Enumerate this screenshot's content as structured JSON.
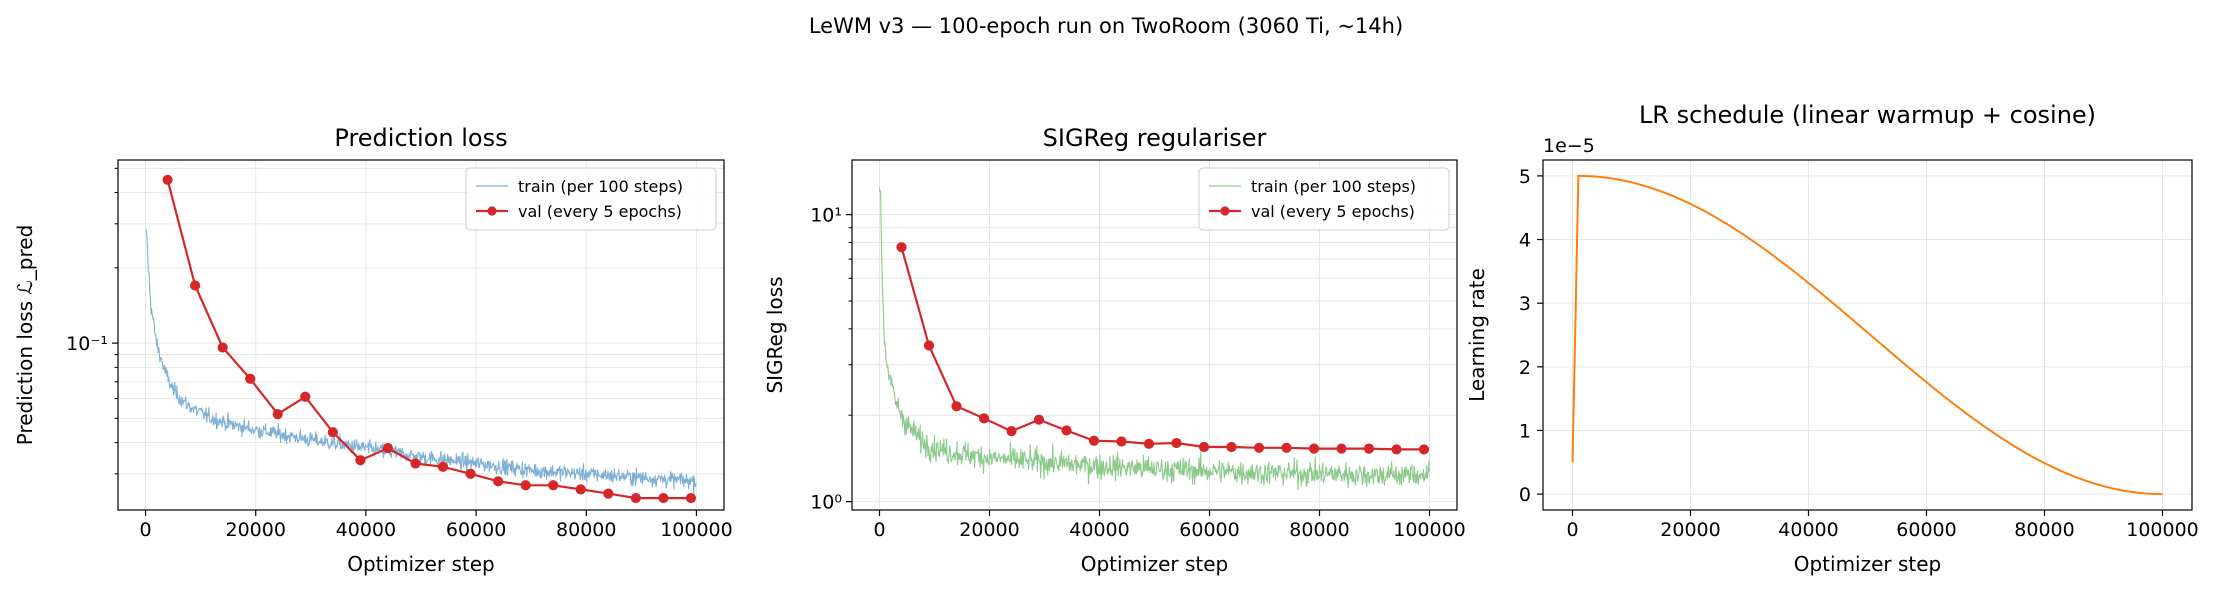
{
  "suptitle": "LeWM v3 — 100-epoch run on TwoRoom (3060 Ti, ~14h)",
  "colors": {
    "train_pred": "#7fb0d6",
    "train_sig": "#8cca8c",
    "val": "#d62728",
    "lr": "#ff7f0e",
    "grid": "#e6e6e6",
    "axis": "#000000"
  },
  "chart_data": [
    {
      "type": "line",
      "title": "Prediction loss",
      "xlabel": "Optimizer step",
      "ylabel": "Prediction loss ℒ_pred",
      "yscale": "log",
      "xlim": [
        -5000,
        105000
      ],
      "ylim": [
        0.0215,
        0.54
      ],
      "xticks": [
        0,
        20000,
        40000,
        60000,
        80000,
        100000
      ],
      "yticks_major": [
        0.1
      ],
      "ytick_major_labels": [
        "10⁻¹"
      ],
      "grid": true,
      "legend": "top-right",
      "series": [
        {
          "name": "train (per 100 steps)",
          "style": "thin-noisy-line",
          "color": "#7fb0d6",
          "noise": 0.05,
          "anchors": {
            "x": [
              0,
              200,
              500,
              1000,
              2000,
              3500,
              5000,
              7000,
              9000,
              12000,
              16000,
              20000,
              25000,
              30000,
              40000,
              50000,
              60000,
              70000,
              80000,
              90000,
              100000
            ],
            "y": [
              0.27,
              0.28,
              0.2,
              0.14,
              0.1,
              0.077,
              0.065,
              0.058,
              0.054,
              0.05,
              0.047,
              0.045,
              0.043,
              0.041,
              0.038,
              0.035,
              0.033,
              0.031,
              0.03,
              0.029,
              0.028
            ]
          }
        },
        {
          "name": "val (every 5 epochs)",
          "style": "line-markers",
          "color": "#d62728",
          "x": [
            4000,
            9000,
            14000,
            19000,
            24000,
            29000,
            34000,
            39000,
            44000,
            49000,
            54000,
            59000,
            64000,
            69000,
            74000,
            79000,
            84000,
            89000,
            94000,
            99000
          ],
          "y": [
            0.45,
            0.17,
            0.096,
            0.072,
            0.052,
            0.061,
            0.044,
            0.034,
            0.038,
            0.033,
            0.032,
            0.03,
            0.028,
            0.027,
            0.027,
            0.026,
            0.025,
            0.024,
            0.024,
            0.024
          ]
        }
      ]
    },
    {
      "type": "line",
      "title": "SIGReg regulariser",
      "xlabel": "Optimizer step",
      "ylabel": "SIGReg loss",
      "yscale": "log",
      "xlim": [
        -5000,
        105000
      ],
      "ylim": [
        0.935,
        15.5
      ],
      "xticks": [
        0,
        20000,
        40000,
        60000,
        80000,
        100000
      ],
      "yticks_major": [
        1,
        10
      ],
      "ytick_major_labels": [
        "10⁰",
        "10¹"
      ],
      "grid": true,
      "legend": "top-right",
      "series": [
        {
          "name": "train (per 100 steps)",
          "style": "thin-noisy-line",
          "color": "#8cca8c",
          "noise": 0.07,
          "anchors": {
            "x": [
              0,
              200,
              500,
              800,
              1200,
              2000,
              3000,
              5000,
              8000,
              12000,
              20000,
              30000,
              40000,
              50000,
              60000,
              70000,
              80000,
              90000,
              100000
            ],
            "y": [
              13,
              11,
              6,
              4,
              3.2,
              2.6,
              2.2,
              1.85,
              1.6,
              1.5,
              1.42,
              1.37,
              1.33,
              1.3,
              1.28,
              1.26,
              1.25,
              1.24,
              1.24
            ]
          }
        },
        {
          "name": "val (every 5 epochs)",
          "style": "line-markers",
          "color": "#d62728",
          "x": [
            4000,
            9000,
            14000,
            19000,
            24000,
            29000,
            34000,
            39000,
            44000,
            49000,
            54000,
            59000,
            64000,
            69000,
            74000,
            79000,
            84000,
            89000,
            94000,
            99000
          ],
          "y": [
            7.7,
            3.5,
            2.15,
            1.95,
            1.76,
            1.93,
            1.77,
            1.63,
            1.62,
            1.59,
            1.6,
            1.55,
            1.55,
            1.54,
            1.54,
            1.53,
            1.53,
            1.53,
            1.52,
            1.52
          ]
        }
      ]
    },
    {
      "type": "line",
      "title": "LR schedule (linear warmup + cosine)",
      "xlabel": "Optimizer step",
      "ylabel": "Learning rate",
      "yscale": "linear",
      "xlim": [
        -5000,
        105000
      ],
      "ylim": [
        -2.5e-06,
        5.25e-05
      ],
      "xticks": [
        0,
        20000,
        40000,
        60000,
        80000,
        100000
      ],
      "yticks": [
        0,
        1e-05,
        2e-05,
        3e-05,
        4e-05,
        5e-05
      ],
      "ytick_labels": [
        "0",
        "1",
        "2",
        "3",
        "4",
        "5"
      ],
      "offset_text": "1e−5",
      "grid": true,
      "series": [
        {
          "name": "",
          "style": "line",
          "color": "#ff7f0e",
          "schedule": {
            "warmup_steps": 1000,
            "total_steps": 100000,
            "start": 5e-06,
            "peak": 5e-05,
            "end": 0
          }
        }
      ]
    }
  ]
}
